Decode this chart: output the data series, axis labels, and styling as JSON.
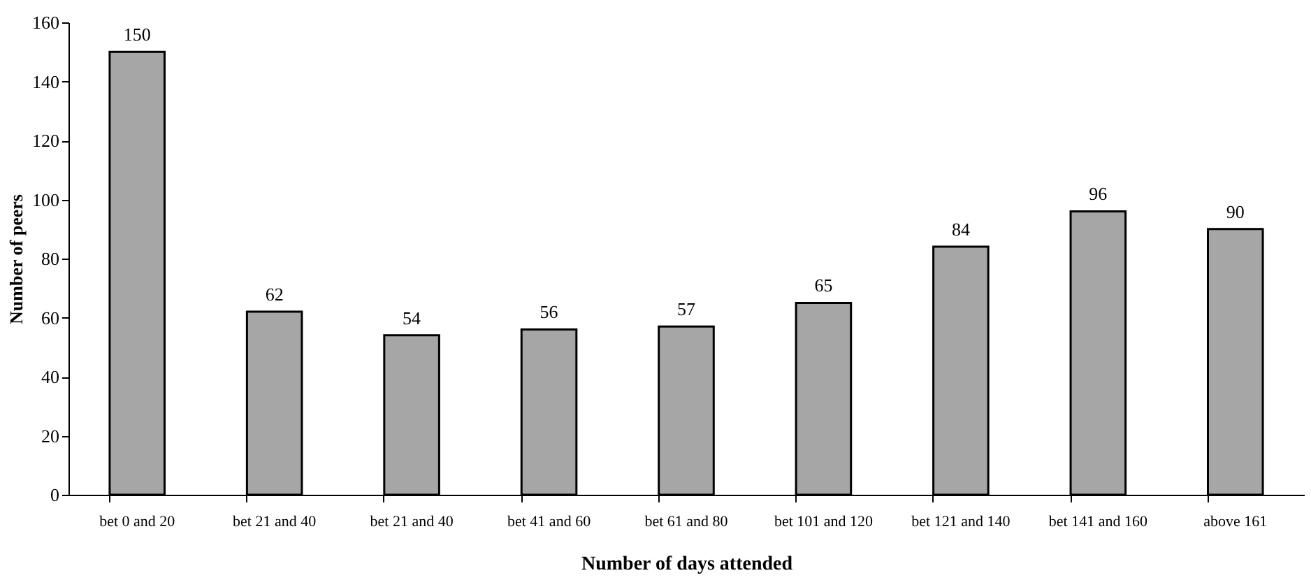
{
  "chart_data": {
    "type": "bar",
    "xlabel": "Number of days attended",
    "ylabel": "Number of peers",
    "categories": [
      "bet 0 and 20",
      "bet 21 and 40",
      "bet 21 and 40",
      "bet 41 and 60",
      "bet 61 and 80",
      "bet 101 and 120",
      "bet 121 and 140",
      "bet 141 and 160",
      "above 161"
    ],
    "values": [
      150,
      62,
      54,
      56,
      57,
      65,
      84,
      96,
      90
    ],
    "color": "#a6a6a6",
    "ylim": [
      0,
      160
    ],
    "yticks": [
      0,
      20,
      40,
      60,
      80,
      100,
      120,
      140,
      160
    ],
    "data_labels": true,
    "grid": false
  }
}
